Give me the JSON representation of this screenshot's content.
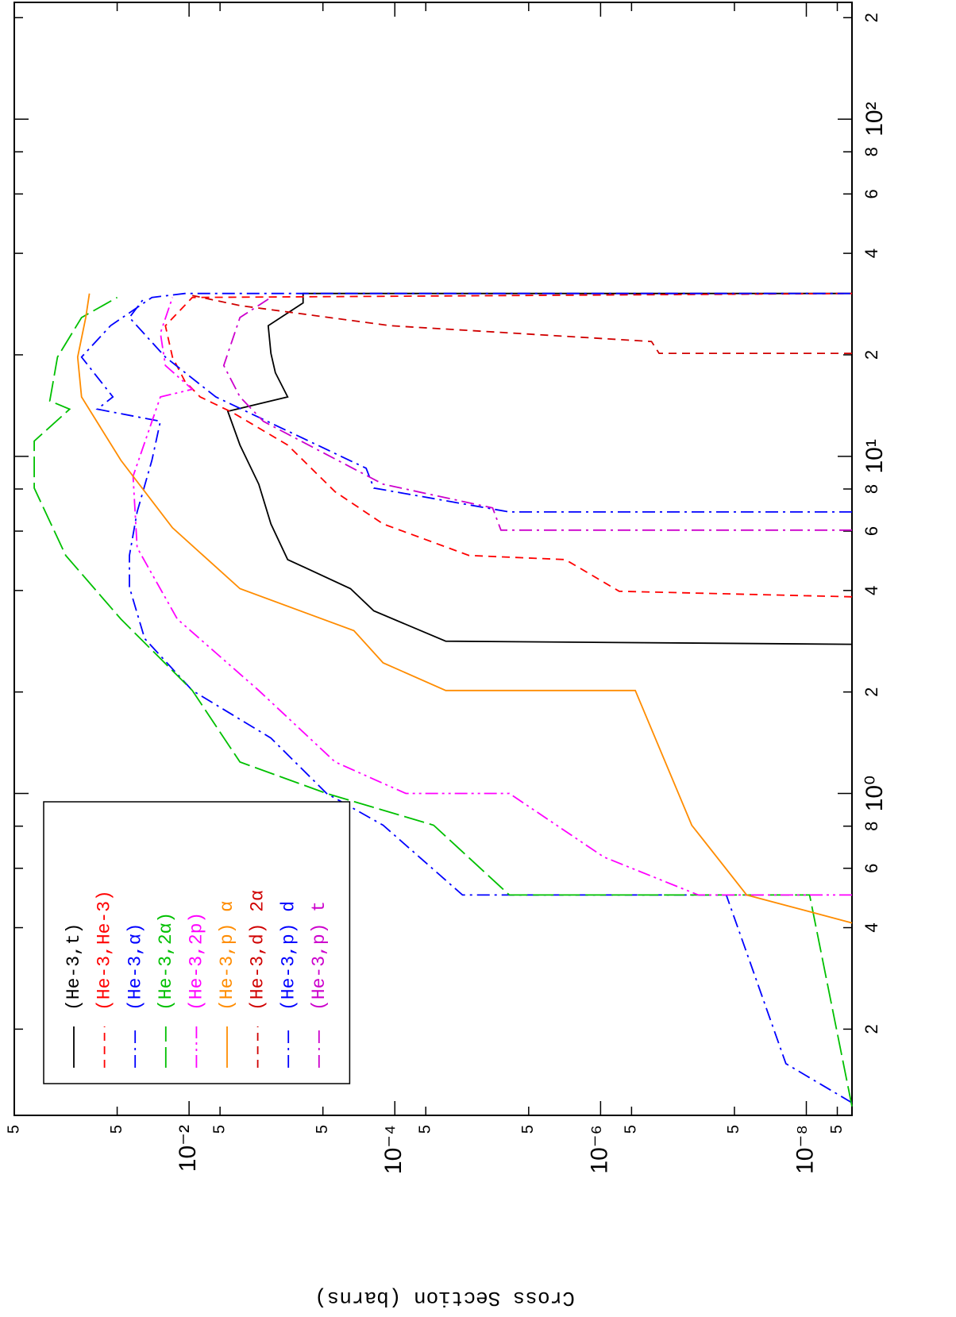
{
  "chart_data": {
    "type": "line",
    "y_label": "Cross Section (barns)",
    "x_log": true,
    "y_log": true,
    "xlim": [
      0.111,
      222
    ],
    "ylim": [
      3.6e-09,
      0.5
    ],
    "xticks": [
      {
        "value": 0.2,
        "label": "2"
      },
      {
        "value": 0.4,
        "label": "4"
      },
      {
        "value": 0.6,
        "label": "6"
      },
      {
        "value": 0.8,
        "label": "8"
      },
      {
        "value": 1,
        "label": "10⁰"
      },
      2,
      4,
      6,
      8,
      {
        "value": 10,
        "label": "10¹"
      },
      {
        "value": 20,
        "label": "2"
      },
      {
        "value": 40,
        "label": "4"
      },
      {
        "value": 60,
        "label": "6"
      },
      {
        "value": 80,
        "label": "8"
      },
      {
        "value": 100,
        "label": "10²"
      },
      {
        "value": 200,
        "label": "2"
      }
    ],
    "yticks": [
      {
        "value": 0.5,
        "label": "5"
      },
      {
        "value": 0.05,
        "label": "5"
      },
      {
        "value": 0.01,
        "label": "10⁻²"
      },
      {
        "value": 0.005,
        "label": "5"
      },
      {
        "value": 0.0005,
        "label": "5"
      },
      {
        "value": 0.0001,
        "label": "10⁻⁴"
      },
      {
        "value": 5e-05,
        "label": "5"
      },
      {
        "value": 5e-06,
        "label": "5"
      },
      {
        "value": 1e-06,
        "label": "10⁻⁶"
      },
      {
        "value": 5e-07,
        "label": "5"
      },
      {
        "value": 5e-08,
        "label": "5"
      },
      {
        "value": 1e-08,
        "label": "10⁻⁸"
      },
      {
        "value": 5e-09,
        "label": "5"
      }
    ],
    "legend": "upper left",
    "series": [
      {
        "name": "(He-3,t)",
        "color": "#000000",
        "linestyle": "solid",
        "x": [
          2.77,
          2.83,
          3.48,
          4.05,
          4.94,
          6.3,
          8.27,
          10.8,
          13.6,
          15.0,
          17.7,
          20.2,
          24.4,
          28.5,
          30.4,
          30.4
        ],
        "values": [
          3.6e-09,
          3.2e-05,
          0.00016,
          0.00027,
          0.0011,
          0.0016,
          0.0021,
          0.0032,
          0.0042,
          0.0011,
          0.00145,
          0.0016,
          0.0017,
          0.00078,
          0.00078,
          3.6e-09
        ]
      },
      {
        "name": "(He-3,He-3)",
        "color": "#ff0000",
        "linestyle": "dashed",
        "x": [
          3.83,
          3.98,
          4.94,
          5.08,
          6.3,
          7.85,
          10.8,
          13.5,
          15.0,
          16.7,
          19.7,
          24.4,
          29.6,
          30.4
        ],
        "values": [
          3.6e-09,
          6.6e-07,
          2.2e-06,
          1.9e-05,
          0.00013,
          0.00038,
          0.0011,
          0.0038,
          0.0078,
          0.011,
          0.0145,
          0.017,
          0.0093,
          3.6e-09
        ]
      },
      {
        "name": "(He-3,α)",
        "color": "#0000ff",
        "linestyle": "dashdot",
        "x": [
          0.121,
          0.158,
          0.5,
          0.5,
          0.805,
          1,
          1.46,
          2.02,
          2.88,
          4.09,
          5.08,
          6.84,
          9.73,
          12.7,
          13.8,
          15.0,
          19.7,
          24.4,
          29.6,
          30.4,
          30.4
        ],
        "values": [
          3.6e-09,
          1.58e-08,
          6e-08,
          2.2e-05,
          0.00013,
          0.00046,
          0.0016,
          0.0093,
          0.027,
          0.038,
          0.038,
          0.032,
          0.023,
          0.019,
          0.078,
          0.055,
          0.111,
          0.058,
          0.023,
          0.011,
          3.6e-09
        ]
      },
      {
        "name": "(He-3,2α)",
        "color": "#00c000",
        "linestyle": "longdash",
        "x": [
          0.118,
          0.5,
          0.5,
          0.805,
          1,
          1.24,
          2.02,
          3.29,
          5.08,
          8.05,
          11.1,
          13.8,
          14.6,
          19.7,
          25.8,
          29.6
        ],
        "values": [
          3.6e-09,
          9.3e-09,
          7.7e-06,
          4.2e-05,
          0.00046,
          0.0032,
          0.0093,
          0.046,
          0.158,
          0.32,
          0.32,
          0.145,
          0.226,
          0.19,
          0.111,
          0.05
        ]
      },
      {
        "name": "(He-3,2p)",
        "color": "#ff00ff",
        "linestyle": "dashdotdot",
        "x": [
          0.5,
          0.5,
          0.648,
          1,
          1,
          1.24,
          2.02,
          3.29,
          5.36,
          8.73,
          15,
          15.8,
          18.6,
          23.2,
          29.6
        ],
        "values": [
          3.6e-09,
          1.12e-07,
          9.3e-07,
          7.7e-06,
          7.8e-05,
          0.00038,
          0.0021,
          0.013,
          0.032,
          0.035,
          0.019,
          0.0093,
          0.017,
          0.019,
          0.0145
        ]
      },
      {
        "name": "(He-3,p) α",
        "color": "#ff8c00",
        "linestyle": "solid",
        "x": [
          0.413,
          0.5,
          0.805,
          2.02,
          2.02,
          2.44,
          3.04,
          4.05,
          6.14,
          9.73,
          15,
          19.7,
          25.8,
          30.4
        ],
        "values": [
          3.6e-09,
          3.8e-08,
          1.3e-07,
          4.6e-07,
          3.2e-05,
          0.00013,
          0.00025,
          0.0032,
          0.0145,
          0.046,
          0.111,
          0.121,
          0.101,
          0.093
        ]
      },
      {
        "name": "(He-3,d) 2α",
        "color": "#d00000",
        "linestyle": "dashed",
        "x": [
          20.2,
          20.2,
          21.9,
          24.4,
          28.0,
          30.0
        ],
        "values": [
          3.6e-09,
          2.7e-07,
          3.2e-07,
          0.00011,
          0.0032,
          0.0093
        ]
      },
      {
        "name": "(He-3,p) d",
        "color": "#0000ff",
        "linestyle": "dashdot",
        "x": [
          6.84,
          6.84,
          8.05,
          9.22,
          15,
          19.7,
          25.8,
          29.6
        ],
        "values": [
          3.6e-09,
          7.7e-06,
          0.00016,
          0.00019,
          0.0055,
          0.017,
          0.038,
          0.027
        ]
      },
      {
        "name": "(He-3,p) t",
        "color": "#cc00cc",
        "linestyle": "dashdot",
        "x": [
          6.04,
          6.04,
          7.03,
          8.27,
          12.7,
          15,
          18.6,
          25.8,
          29.6
        ],
        "values": [
          3.6e-09,
          9.3e-06,
          1.12e-05,
          0.00013,
          0.0019,
          0.0032,
          0.0046,
          0.0032,
          0.0016
        ]
      }
    ]
  }
}
